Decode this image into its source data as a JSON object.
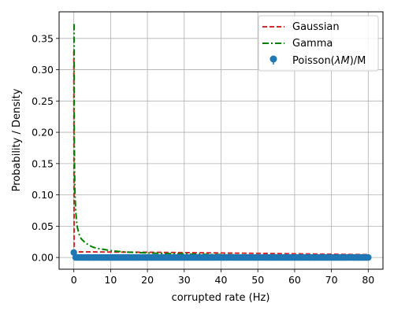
{
  "chart_data": {
    "type": "line",
    "title": "",
    "xlabel": "corrupted rate (Hz)",
    "ylabel": "Probability / Density",
    "xlim": [
      -4,
      84
    ],
    "ylim": [
      -0.0187,
      0.3925
    ],
    "xticks": [
      0,
      10,
      20,
      30,
      40,
      50,
      60,
      70,
      80
    ],
    "yticks": [
      0.0,
      0.05,
      0.1,
      0.15,
      0.2,
      0.25,
      0.3,
      0.35
    ],
    "xtick_labels": [
      "0",
      "10",
      "20",
      "30",
      "40",
      "50",
      "60",
      "70",
      "80"
    ],
    "ytick_labels": [
      "0.00",
      "0.05",
      "0.10",
      "0.15",
      "0.20",
      "0.25",
      "0.30",
      "0.35"
    ],
    "grid": true,
    "legend_position": "top-right",
    "series": [
      {
        "name": "Gaussian",
        "kind": "line",
        "color": "#d62728",
        "dash": "dashed",
        "x": [
          0.0,
          0.01,
          0.05,
          0.1,
          0.2,
          0.5,
          1,
          5,
          10,
          20,
          30,
          40,
          50,
          60,
          70,
          80
        ],
        "y": [
          0.33,
          0.3,
          0.1,
          0.009,
          0.009,
          0.009,
          0.009,
          0.0089,
          0.0087,
          0.0083,
          0.0078,
          0.0072,
          0.0066,
          0.0059,
          0.0052,
          0.0045
        ]
      },
      {
        "name": "Gamma",
        "kind": "line",
        "color": "#008000",
        "dash": "dashdot",
        "x": [
          0.05,
          0.08,
          0.12,
          0.2,
          0.3,
          0.5,
          0.8,
          1,
          1.5,
          2,
          3,
          4,
          5,
          6,
          7,
          8,
          10,
          12,
          15,
          20,
          25,
          30,
          40,
          50,
          60,
          70,
          80
        ],
        "y": [
          0.373,
          0.29,
          0.2,
          0.14,
          0.105,
          0.075,
          0.055,
          0.047,
          0.036,
          0.03,
          0.024,
          0.02,
          0.017,
          0.015,
          0.014,
          0.013,
          0.011,
          0.0097,
          0.0085,
          0.0072,
          0.0063,
          0.0056,
          0.0045,
          0.0036,
          0.0029,
          0.0023,
          0.0018
        ]
      },
      {
        "name": "Poisson($\\lambda M$)/M",
        "kind": "markers",
        "color": "#1f77b4",
        "x_range": [
          0,
          80
        ],
        "x_step": 0.5,
        "peak": {
          "x": 0,
          "y": 0.008
        },
        "baseline_y": 0.0
      }
    ],
    "legend": [
      {
        "label": "Gaussian",
        "style": "dashed",
        "color": "#d62728"
      },
      {
        "label": "Gamma",
        "style": "dashdot",
        "color": "#008000"
      },
      {
        "label": "Poisson($\\lambda M$)/M",
        "style": "marker",
        "color": "#1f77b4"
      }
    ]
  }
}
